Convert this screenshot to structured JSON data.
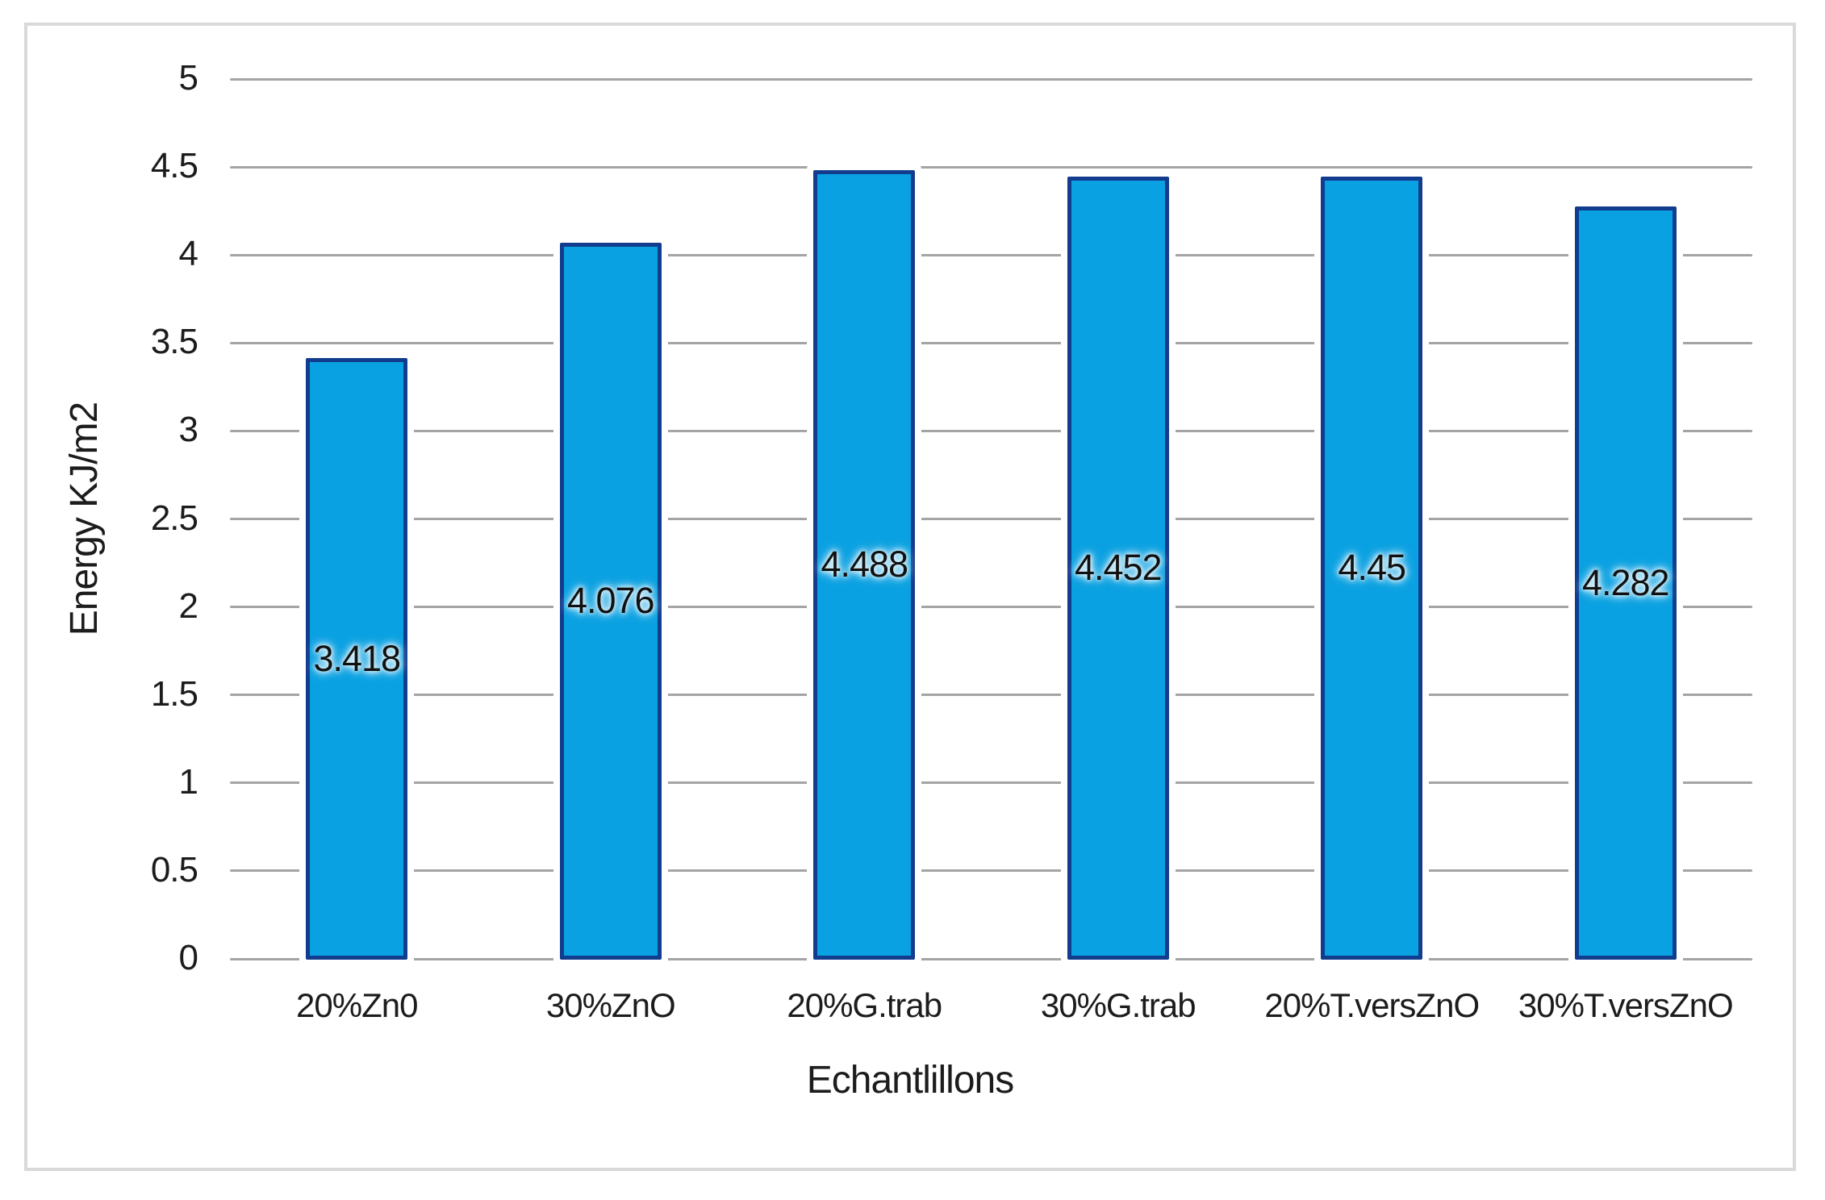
{
  "chart_data": {
    "type": "bar",
    "title": "",
    "xlabel": "Echantlillons",
    "ylabel": "Energy KJ/m2",
    "categories": [
      "20%Zn0",
      "30%ZnO",
      "20%G.trab",
      "30%G.trab",
      "20%T.versZnO",
      "30%T.versZnO"
    ],
    "values": [
      3.418,
      4.076,
      4.488,
      4.452,
      4.45,
      4.282
    ],
    "data_labels": [
      "3.418",
      "4.076",
      "4.488",
      "4.452",
      "4.45",
      "4.282"
    ],
    "ylim": [
      0,
      5
    ],
    "ytick_step": 0.5,
    "ytick_labels": [
      "0",
      "0.5",
      "1",
      "1.5",
      "2",
      "2.5",
      "3",
      "3.5",
      "4",
      "4.5",
      "5"
    ],
    "grid": true,
    "legend_position": "none",
    "colors": {
      "bar_fill": "#0aa1e2",
      "bar_border": "#123c8d",
      "gridline": "#a4a4a4",
      "frame_border": "#d9d9d9",
      "text": "#1c1c1c",
      "background": "#ffffff"
    }
  }
}
